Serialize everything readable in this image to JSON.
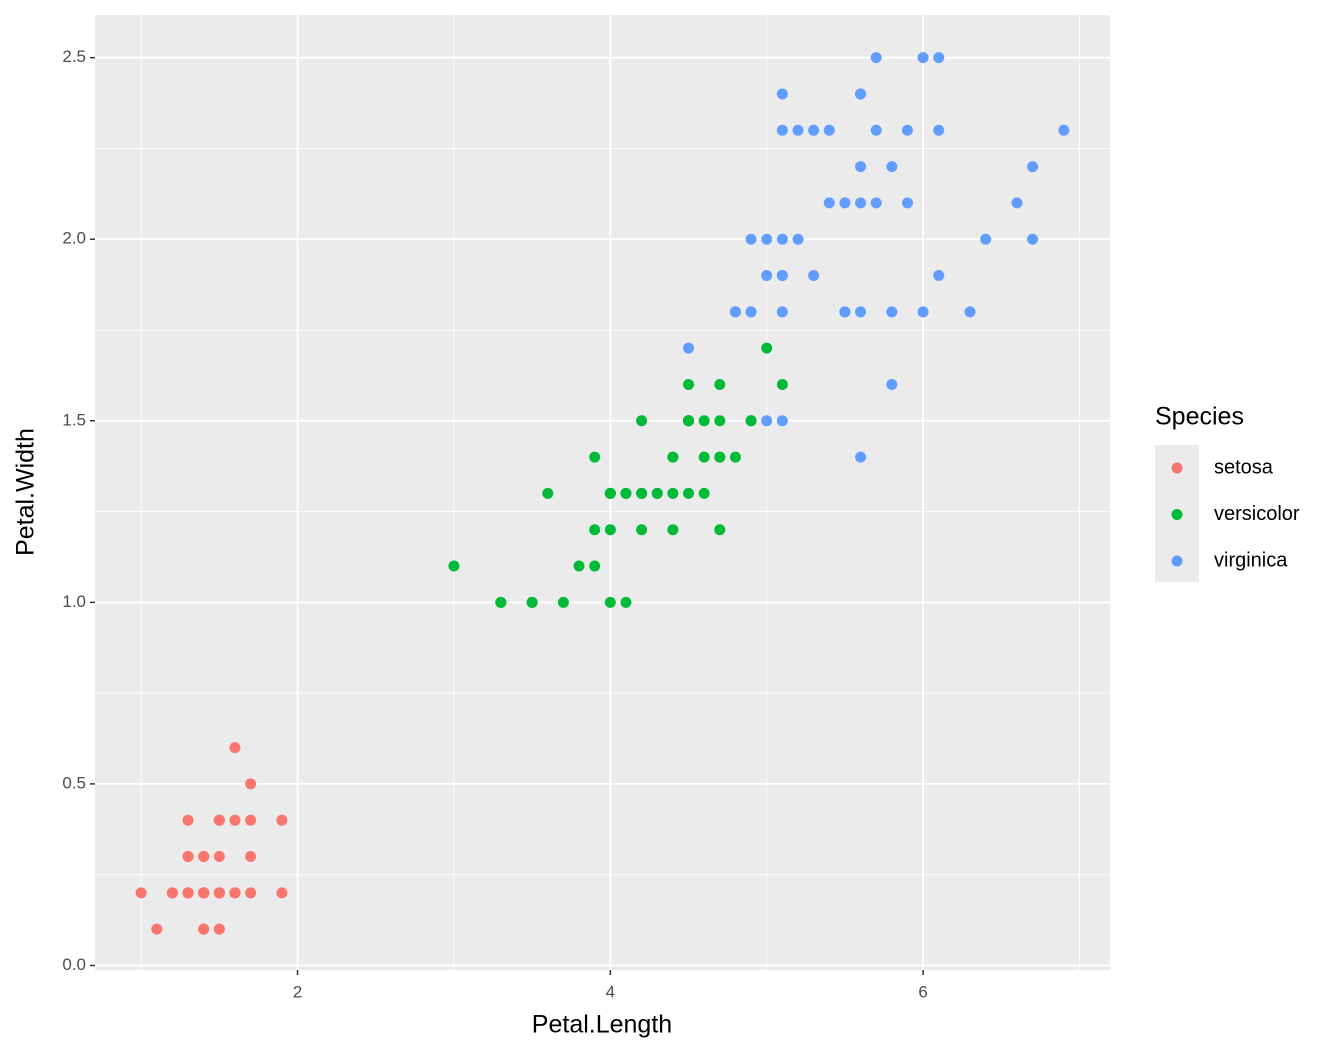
{
  "chart_data": {
    "type": "scatter",
    "x_label": "Petal.Length",
    "y_label": "Petal.Width",
    "legend_title": "Species",
    "legend_position": "right",
    "grid": true,
    "xlim": [
      0.705,
      7.195
    ],
    "ylim": [
      -0.0125,
      2.6175
    ],
    "xticks": [
      2,
      4,
      6
    ],
    "yticks": [
      {
        "value": 0,
        "label": "0.0"
      },
      0.5,
      {
        "value": 1,
        "label": "1.0"
      },
      1.5,
      {
        "value": 2,
        "label": "2.0"
      },
      2.5
    ],
    "series": [
      {
        "name": "setosa",
        "color": "#F8766D",
        "x": [
          1.4,
          1.4,
          1.3,
          1.5,
          1.4,
          1.7,
          1.4,
          1.5,
          1.4,
          1.5,
          1.5,
          1.6,
          1.4,
          1.1,
          1.2,
          1.5,
          1.3,
          1.4,
          1.7,
          1.5,
          1.7,
          1.5,
          1.0,
          1.7,
          1.9,
          1.6,
          1.6,
          1.5,
          1.4,
          1.6,
          1.6,
          1.5,
          1.5,
          1.4,
          1.5,
          1.2,
          1.3,
          1.4,
          1.3,
          1.5,
          1.3,
          1.3,
          1.3,
          1.6,
          1.9,
          1.4,
          1.6,
          1.4,
          1.5,
          1.4
        ],
        "values": [
          0.2,
          0.2,
          0.2,
          0.2,
          0.2,
          0.4,
          0.3,
          0.2,
          0.2,
          0.1,
          0.2,
          0.2,
          0.1,
          0.1,
          0.2,
          0.4,
          0.4,
          0.3,
          0.3,
          0.3,
          0.2,
          0.4,
          0.2,
          0.5,
          0.2,
          0.2,
          0.4,
          0.2,
          0.2,
          0.2,
          0.2,
          0.4,
          0.1,
          0.2,
          0.2,
          0.2,
          0.2,
          0.1,
          0.2,
          0.2,
          0.3,
          0.3,
          0.2,
          0.6,
          0.4,
          0.3,
          0.2,
          0.2,
          0.2,
          0.2
        ]
      },
      {
        "name": "versicolor",
        "color": "#00BA38",
        "x": [
          4.7,
          4.5,
          4.9,
          4.0,
          4.6,
          4.5,
          4.7,
          3.3,
          4.6,
          3.9,
          3.5,
          4.2,
          4.0,
          4.7,
          3.6,
          4.4,
          4.5,
          4.1,
          4.5,
          3.9,
          4.8,
          4.0,
          4.9,
          4.7,
          4.3,
          4.4,
          4.8,
          5.0,
          4.5,
          3.5,
          3.8,
          3.7,
          3.9,
          5.1,
          4.5,
          4.5,
          4.7,
          4.4,
          4.1,
          4.0,
          4.4,
          4.6,
          4.0,
          3.3,
          4.2,
          4.2,
          4.2,
          4.3,
          3.0,
          4.1
        ],
        "values": [
          1.4,
          1.5,
          1.5,
          1.3,
          1.5,
          1.3,
          1.6,
          1.0,
          1.3,
          1.4,
          1.0,
          1.5,
          1.0,
          1.4,
          1.3,
          1.4,
          1.5,
          1.0,
          1.5,
          1.1,
          1.8,
          1.3,
          1.5,
          1.2,
          1.3,
          1.4,
          1.4,
          1.7,
          1.5,
          1.0,
          1.1,
          1.0,
          1.2,
          1.6,
          1.5,
          1.6,
          1.5,
          1.3,
          1.3,
          1.3,
          1.2,
          1.4,
          1.2,
          1.0,
          1.3,
          1.2,
          1.3,
          1.3,
          1.1,
          1.3
        ]
      },
      {
        "name": "virginica",
        "color": "#619CFF",
        "x": [
          6.0,
          5.1,
          5.9,
          5.6,
          5.8,
          6.6,
          4.5,
          6.3,
          5.8,
          6.1,
          5.1,
          5.3,
          5.5,
          5.0,
          5.1,
          5.3,
          5.5,
          6.7,
          6.9,
          5.0,
          5.7,
          4.9,
          6.7,
          4.9,
          5.7,
          6.0,
          4.8,
          4.9,
          5.6,
          5.8,
          6.1,
          6.4,
          5.6,
          5.1,
          5.6,
          6.1,
          5.6,
          5.5,
          4.8,
          5.4,
          5.6,
          5.1,
          5.1,
          5.9,
          5.7,
          5.2,
          5.0,
          5.2,
          5.4,
          5.1
        ],
        "values": [
          2.5,
          1.9,
          2.1,
          1.8,
          2.2,
          2.1,
          1.7,
          1.8,
          1.8,
          2.5,
          2.0,
          1.9,
          2.1,
          2.0,
          2.4,
          2.3,
          1.8,
          2.2,
          2.3,
          1.5,
          2.3,
          2.0,
          2.0,
          1.8,
          2.1,
          1.8,
          1.8,
          1.8,
          2.1,
          1.6,
          1.9,
          2.0,
          2.2,
          1.5,
          1.4,
          2.3,
          2.4,
          1.8,
          1.8,
          2.1,
          2.4,
          2.3,
          1.9,
          2.3,
          2.5,
          2.3,
          1.9,
          2.0,
          2.3,
          1.8
        ]
      }
    ]
  }
}
